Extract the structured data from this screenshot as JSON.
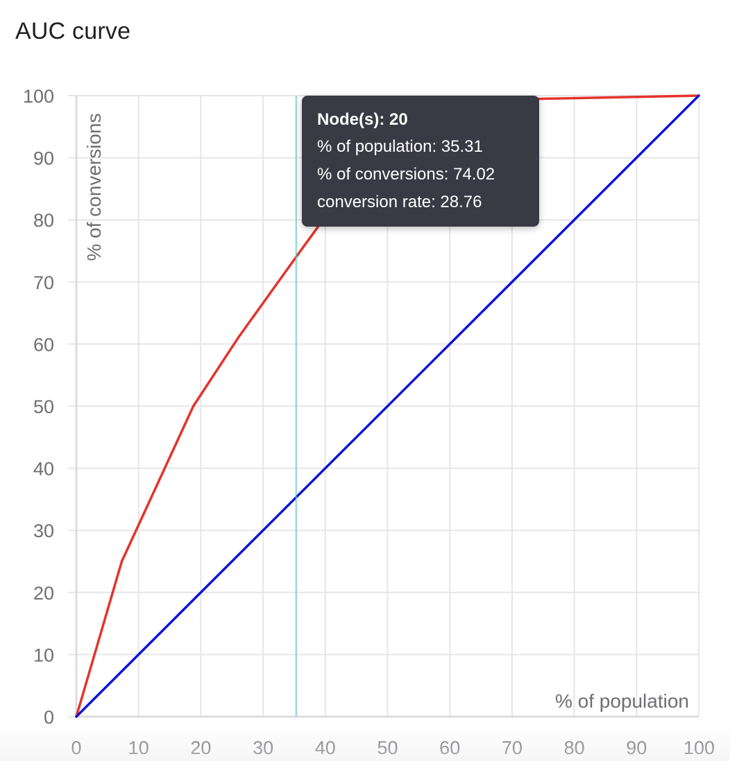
{
  "title": "AUC curve",
  "chart_data": {
    "type": "line",
    "xlabel": "% of population",
    "ylabel": "% of conversions",
    "xlim": [
      0,
      100
    ],
    "ylim": [
      0,
      100
    ],
    "x_ticks": [
      "0",
      "10",
      "20",
      "30",
      "40",
      "50",
      "60",
      "70",
      "80",
      "90",
      "100"
    ],
    "y_ticks": [
      "0",
      "10",
      "20",
      "30",
      "40",
      "50",
      "60",
      "70",
      "80",
      "90",
      "100"
    ],
    "grid": true,
    "series": [
      {
        "color": "#e5332a",
        "points": [
          [
            0,
            0
          ],
          [
            7.3,
            25
          ],
          [
            18.8,
            50
          ],
          [
            26,
            61
          ],
          [
            35.31,
            74.02
          ],
          [
            40,
            80.5
          ],
          [
            47,
            90
          ],
          [
            52,
            98.5
          ],
          [
            60,
            99.2
          ],
          [
            80,
            99.6
          ],
          [
            100,
            100
          ]
        ]
      },
      {
        "color": "#0b12db",
        "points": [
          [
            0,
            0
          ],
          [
            100,
            100
          ]
        ]
      }
    ],
    "hover_x": 35.31,
    "hover_color": "#5ec9c1",
    "tooltip": {
      "title": "Node(s): 20",
      "rows": [
        "% of population: 35.31",
        "% of conversions: 74.02",
        "conversion rate: 28.76"
      ]
    }
  }
}
